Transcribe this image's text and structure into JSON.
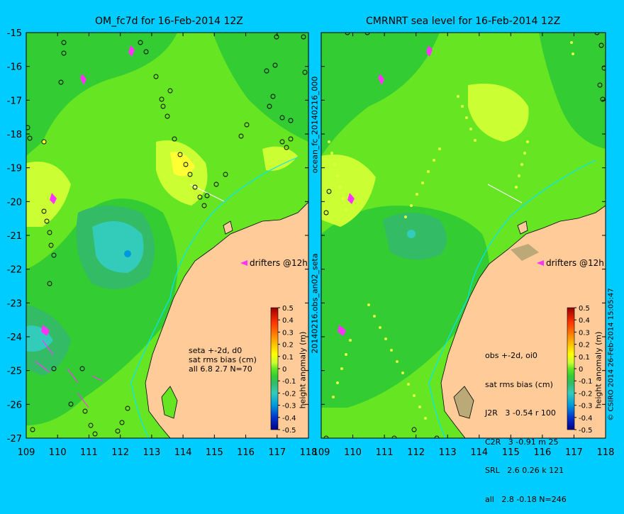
{
  "left_panel": {
    "title": "OM_fc7d for 16-Feb-2014 12Z",
    "drifters_label": "drifters @12h",
    "stats": [
      "seta +-2d, d0",
      "sat rms bias (cm)",
      "all 6.8 2.7 N=70"
    ]
  },
  "right_panel": {
    "title": "CMRNRT sea level  for 16-Feb-2014 12Z",
    "drifters_label": "drifters @12h",
    "stats": [
      "obs +-2d, oi0",
      "sat rms bias (cm)",
      "J2R   3 -0.54 r 100",
      "C2R   3 -0.91 m 25",
      "SRL   2.6 0.26 k 121",
      "all   2.8 -0.18 N=246"
    ]
  },
  "x_ticks": [
    "109",
    "110",
    "111",
    "112",
    "113",
    "114",
    "115",
    "116",
    "117",
    "118"
  ],
  "y_ticks": [
    "-15",
    "-16",
    "-17",
    "-18",
    "-19",
    "-20",
    "-21",
    "-22",
    "-23",
    "-24",
    "-25",
    "-26",
    "-27"
  ],
  "colorbar": {
    "ticks": [
      "0.5",
      "0.4",
      "0.3",
      "0.2",
      "0.1",
      "0",
      "-0.1",
      "-0.2",
      "-0.3",
      "-0.4",
      "-0.5"
    ],
    "label": "height anomaly (m)"
  },
  "middle_vertical_text": "20140216.obs_an02_seta",
  "middle_vertical_text_top": "ocean_fc_20140216_000",
  "credit": "© CSIRO 2014   26-Feb-2014 15:05:47",
  "colors": {
    "background": "#00ccff",
    "land": "#ffcc99",
    "green_mid": "#33cc33",
    "green_light": "#66e622",
    "yellow": "#ccff33"
  }
}
